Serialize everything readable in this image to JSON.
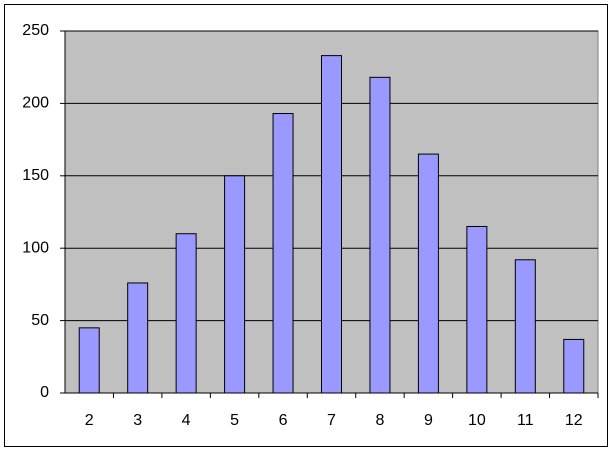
{
  "chart_data": {
    "type": "bar",
    "categories": [
      "2",
      "3",
      "4",
      "5",
      "6",
      "7",
      "8",
      "9",
      "10",
      "11",
      "12"
    ],
    "values": [
      45,
      76,
      110,
      150,
      193,
      233,
      218,
      165,
      115,
      92,
      37
    ],
    "color": "#9999ff",
    "ylim": [
      0,
      250
    ],
    "yticks": [
      0,
      50,
      100,
      150,
      200,
      250
    ],
    "grid": true
  }
}
